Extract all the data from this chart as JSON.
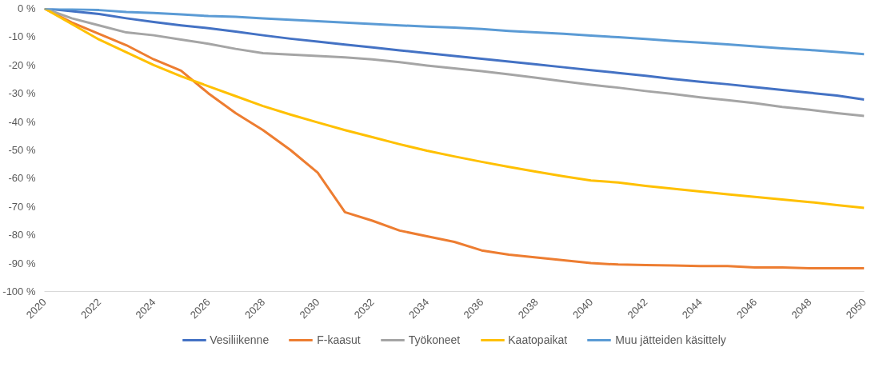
{
  "chart_data": {
    "type": "line",
    "x": [
      2020,
      2021,
      2022,
      2023,
      2024,
      2025,
      2026,
      2027,
      2028,
      2029,
      2030,
      2031,
      2032,
      2033,
      2034,
      2035,
      2036,
      2037,
      2038,
      2039,
      2040,
      2041,
      2042,
      2043,
      2044,
      2045,
      2046,
      2047,
      2048,
      2049,
      2050
    ],
    "series": [
      {
        "name": "Vesiliikenne",
        "color": "#4472c4",
        "values": [
          0,
          -1,
          -2,
          -3.5,
          -4.8,
          -6,
          -7,
          -8.2,
          -9.5,
          -10.7,
          -11.7,
          -12.8,
          -13.8,
          -14.8,
          -15.8,
          -16.8,
          -17.8,
          -18.8,
          -19.8,
          -20.8,
          -21.8,
          -22.8,
          -23.8,
          -24.9,
          -25.9,
          -26.8,
          -27.8,
          -28.8,
          -29.8,
          -30.8,
          -32.2
        ]
      },
      {
        "name": "F-kaasut",
        "color": "#ed7d31",
        "values": [
          0,
          -5,
          -9,
          -13,
          -18,
          -22,
          -30,
          -37,
          -43,
          -50,
          -58,
          -72,
          -75,
          -78.5,
          -80.5,
          -82.5,
          -85.5,
          -87,
          -88,
          -89,
          -90,
          -90.5,
          -90.7,
          -90.8,
          -91,
          -91,
          -91.5,
          -91.5,
          -91.8,
          -91.8,
          -91.8
        ]
      },
      {
        "name": "Työkoneet",
        "color": "#a5a5a5",
        "values": [
          0,
          -3.5,
          -6,
          -8.5,
          -9.5,
          -11,
          -12.5,
          -14.3,
          -15.8,
          -16.3,
          -16.8,
          -17.3,
          -18,
          -19,
          -20.2,
          -21.2,
          -22.2,
          -23.3,
          -24.5,
          -25.8,
          -27,
          -28,
          -29.2,
          -30.2,
          -31.4,
          -32.4,
          -33.5,
          -34.8,
          -35.8,
          -37,
          -38
        ]
      },
      {
        "name": "Kaatopaikat",
        "color": "#ffc000",
        "values": [
          0,
          -5.5,
          -11,
          -15.5,
          -20,
          -24,
          -27.5,
          -31,
          -34.5,
          -37.5,
          -40.3,
          -43,
          -45.5,
          -48,
          -50.3,
          -52.3,
          -54.2,
          -56,
          -57.7,
          -59.3,
          -60.8,
          -61.5,
          -62.7,
          -63.7,
          -64.7,
          -65.7,
          -66.6,
          -67.5,
          -68.4,
          -69.5,
          -70.5
        ]
      },
      {
        "name": "Muu jätteiden käsittely",
        "color": "#5b9bd5",
        "values": [
          0,
          -0.3,
          -0.6,
          -1.3,
          -1.6,
          -2.1,
          -2.7,
          -3,
          -3.5,
          -4,
          -4.5,
          -5,
          -5.5,
          -6,
          -6.4,
          -6.8,
          -7.3,
          -8,
          -8.5,
          -9,
          -9.6,
          -10.2,
          -10.8,
          -11.5,
          -12.1,
          -12.7,
          -13.4,
          -14.1,
          -14.7,
          -15.4,
          -16.2
        ]
      }
    ],
    "xlim": [
      2020,
      2050
    ],
    "xticks": [
      2020,
      2022,
      2024,
      2026,
      2028,
      2030,
      2032,
      2034,
      2036,
      2038,
      2040,
      2042,
      2044,
      2046,
      2048,
      2050
    ],
    "ylim": [
      -100,
      0
    ],
    "yticks": [
      {
        "value": 0,
        "label": "0 %"
      },
      {
        "value": -10,
        "label": "-10 %"
      },
      {
        "value": -20,
        "label": "-20 %"
      },
      {
        "value": -30,
        "label": "-30 %"
      },
      {
        "value": -40,
        "label": "-40 %"
      },
      {
        "value": -50,
        "label": "-50 %"
      },
      {
        "value": -60,
        "label": "-60 %"
      },
      {
        "value": -70,
        "label": "-70 %"
      },
      {
        "value": -80,
        "label": "-80 %"
      },
      {
        "value": -90,
        "label": "-90 %"
      },
      {
        "value": -100,
        "label": "-100 %"
      }
    ],
    "legend": "bottom",
    "grid": false,
    "marker": "none",
    "line_style": "solid"
  }
}
